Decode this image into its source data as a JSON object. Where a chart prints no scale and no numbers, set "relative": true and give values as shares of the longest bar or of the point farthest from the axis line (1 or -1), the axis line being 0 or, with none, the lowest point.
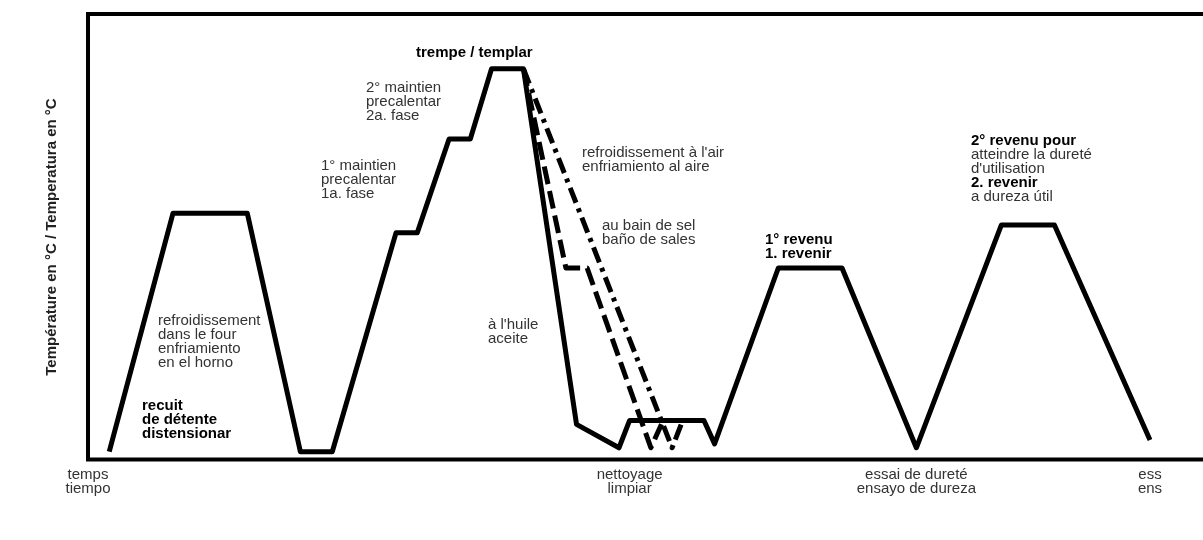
{
  "chart_data": {
    "type": "line",
    "relative": true,
    "ylabel": "Température en °C / Temperatura en °C",
    "legend": false,
    "grid": false,
    "marker": "none",
    "categories": [
      "temps\ntiempo",
      null,
      null,
      null,
      null,
      null,
      null,
      null,
      null,
      null,
      null,
      null,
      null,
      null,
      null,
      null,
      null,
      null,
      null,
      null,
      null,
      null,
      null,
      null,
      null,
      null,
      null,
      null,
      null,
      null,
      null,
      null,
      null,
      null,
      null,
      null,
      null,
      null,
      null,
      null,
      null,
      null,
      null,
      null,
      null,
      null,
      null,
      null,
      null,
      null,
      null,
      "nettoyage\nlimpiar",
      null,
      null,
      null,
      null,
      null,
      null,
      null,
      null,
      null,
      null,
      null,
      null,
      null,
      null,
      null,
      null,
      null,
      null,
      null,
      null,
      null,
      null,
      null,
      null,
      null,
      null,
      "essai de dureté\nensayo de dureza",
      null,
      null,
      null,
      null,
      null,
      null,
      null,
      null,
      null,
      null,
      null,
      null,
      null,
      null,
      null,
      null,
      null,
      null,
      null,
      null,
      null,
      "ess\nens"
    ],
    "series": [
      {
        "color": "#000000",
        "line_style": "solid",
        "values": [
          null,
          null,
          0.02,
          null,
          null,
          null,
          null,
          null,
          0.63,
          null,
          null,
          null,
          null,
          null,
          null,
          0.63,
          null,
          null,
          null,
          null,
          0.02,
          null,
          null,
          0.02,
          null,
          null,
          null,
          null,
          null,
          0.58,
          null,
          0.58,
          null,
          null,
          0.82,
          null,
          0.82,
          null,
          1,
          null,
          null,
          1,
          null,
          null,
          null,
          null,
          0.09,
          null,
          null,
          null,
          0.03,
          0.1,
          null,
          null,
          null,
          null,
          null,
          null,
          0.1,
          0.04,
          null,
          null,
          null,
          null,
          null,
          0.49,
          null,
          null,
          null,
          null,
          null,
          0.49,
          null,
          null,
          null,
          null,
          null,
          null,
          0.03,
          null,
          null,
          null,
          null,
          null,
          null,
          null,
          0.6,
          null,
          null,
          null,
          null,
          0.6,
          null,
          null,
          null,
          null,
          null,
          null,
          null,
          null,
          0.05
        ]
      },
      {
        "color": "#000000",
        "line_style": "dashed",
        "values": [
          null,
          null,
          null,
          null,
          null,
          null,
          null,
          null,
          null,
          null,
          null,
          null,
          null,
          null,
          null,
          null,
          null,
          null,
          null,
          null,
          null,
          null,
          null,
          null,
          null,
          null,
          null,
          null,
          null,
          null,
          null,
          null,
          null,
          null,
          null,
          null,
          null,
          null,
          null,
          null,
          null,
          1,
          null,
          null,
          null,
          0.49,
          null,
          0.49,
          null,
          null,
          null,
          null,
          null,
          0.03,
          0.09,
          null,
          null,
          null,
          null,
          null,
          null,
          null,
          null,
          null,
          null,
          null,
          null,
          null,
          null,
          null,
          null,
          null,
          null,
          null,
          null,
          null,
          null,
          null,
          null,
          null,
          null,
          null,
          null,
          null,
          null,
          null,
          null,
          null,
          null,
          null,
          null,
          null,
          null,
          null,
          null,
          null,
          null,
          null,
          null,
          null,
          null
        ]
      },
      {
        "color": "#000000",
        "line_style": "dotted",
        "values": [
          null,
          null,
          null,
          null,
          null,
          null,
          null,
          null,
          null,
          null,
          null,
          null,
          null,
          null,
          null,
          null,
          null,
          null,
          null,
          null,
          null,
          null,
          null,
          null,
          null,
          null,
          null,
          null,
          null,
          null,
          null,
          null,
          null,
          null,
          null,
          null,
          null,
          null,
          null,
          null,
          null,
          1,
          null,
          null,
          null,
          null,
          null,
          null,
          null,
          null,
          null,
          null,
          null,
          null,
          null,
          0.03,
          0.1,
          null,
          null,
          null,
          null,
          null,
          null,
          null,
          null,
          null,
          null,
          null,
          null,
          null,
          null,
          null,
          null,
          null,
          null,
          null,
          null,
          null,
          null,
          null,
          null,
          null,
          null,
          null,
          null,
          null,
          null,
          null,
          null,
          null,
          null,
          null,
          null,
          null,
          null,
          null,
          null,
          null,
          null,
          null,
          null
        ]
      }
    ],
    "annotations": [
      "trempe / templar",
      "2° maintien\nprecalentar\n2a. fase",
      "1° maintien\nprecalentar\n1a. fase",
      "refroidissement à l'air\nenfriamiento al aire",
      "au bain de sel\nbaño de sales",
      "1° revenu\n1. revenir",
      "2° revenu pour\natteindre la dureté\nd'utilisation\n2. revenir\na dureza útil",
      "refroidissement\ndans le four\nenfriamiento\nen el horno",
      "à l'huile\naceite",
      "recuit\nde détente\ndistensionar"
    ]
  }
}
